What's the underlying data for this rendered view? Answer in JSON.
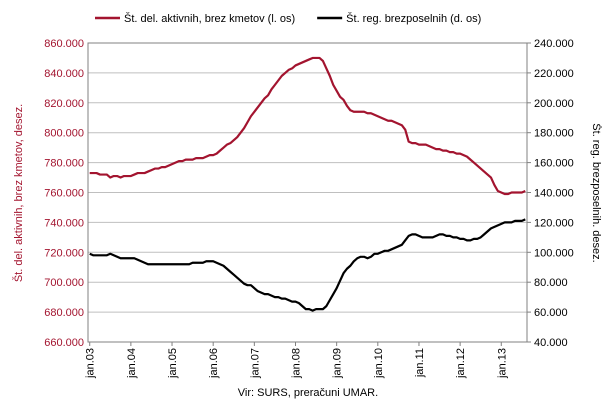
{
  "chart_data": {
    "type": "line",
    "source": "Vir: SURS, preračuni UMAR.",
    "ylabel": "Št. del. aktivnih, brez kmetov, desez.",
    "y2label": "Št. reg. brezposelnih. desez.",
    "categories": [
      "jan.03",
      null,
      null,
      null,
      null,
      null,
      null,
      null,
      null,
      null,
      null,
      null,
      "jan.04",
      null,
      null,
      null,
      null,
      null,
      null,
      null,
      null,
      null,
      null,
      null,
      "jan.05",
      null,
      null,
      null,
      null,
      null,
      null,
      null,
      null,
      null,
      null,
      null,
      "jan.06",
      null,
      null,
      null,
      null,
      null,
      null,
      null,
      null,
      null,
      null,
      null,
      "jan.07",
      null,
      null,
      null,
      null,
      null,
      null,
      null,
      null,
      null,
      null,
      null,
      "jan.08",
      null,
      null,
      null,
      null,
      null,
      null,
      null,
      null,
      null,
      null,
      null,
      "jan.09",
      null,
      null,
      null,
      null,
      null,
      null,
      null,
      null,
      null,
      null,
      null,
      "jan.10",
      null,
      null,
      null,
      null,
      null,
      null,
      null,
      null,
      null,
      null,
      null,
      "jan.11",
      null,
      null,
      null,
      null,
      null,
      null,
      null,
      null,
      null,
      null,
      null,
      "jan.12",
      null,
      null,
      null,
      null,
      null,
      null,
      null,
      null,
      null,
      null,
      null,
      "jan.13",
      null,
      null,
      null,
      null,
      null,
      null,
      null
    ],
    "series": [
      {
        "name": "Št. del. aktivnih, brez kmetov (l. os)",
        "color": "#a3142f",
        "axis": "y",
        "values": [
          773000,
          773000,
          773000,
          772000,
          772000,
          772000,
          770000,
          771000,
          771000,
          770000,
          771000,
          771000,
          771000,
          772000,
          773000,
          773000,
          773000,
          774000,
          775000,
          776000,
          776000,
          777000,
          777000,
          778000,
          779000,
          780000,
          781000,
          781000,
          782000,
          782000,
          782000,
          783000,
          783000,
          783000,
          784000,
          785000,
          785000,
          786000,
          788000,
          790000,
          792000,
          793000,
          795000,
          797000,
          800000,
          803000,
          807000,
          811000,
          814000,
          817000,
          820000,
          823000,
          825000,
          829000,
          832000,
          835000,
          838000,
          840000,
          842000,
          843000,
          845000,
          846000,
          847000,
          848000,
          849000,
          850000,
          850000,
          850000,
          848000,
          843000,
          838000,
          832000,
          828000,
          824000,
          822000,
          818000,
          815000,
          814000,
          814000,
          814000,
          814000,
          813000,
          813000,
          812000,
          811000,
          810000,
          809000,
          808000,
          808000,
          807000,
          806000,
          805000,
          802000,
          794000,
          793000,
          793000,
          792000,
          792000,
          792000,
          791000,
          790000,
          789000,
          789000,
          788000,
          788000,
          787000,
          787000,
          786000,
          786000,
          785000,
          784000,
          782000,
          780000,
          778000,
          776000,
          774000,
          772000,
          770000,
          765000,
          761000,
          760000,
          759000,
          759000,
          760000,
          760000,
          760000,
          760000,
          761000
        ]
      },
      {
        "name": "Št. reg. brezposelnih (d. os)",
        "color": "#000000",
        "axis": "y2",
        "values": [
          99000,
          98000,
          98000,
          98000,
          98000,
          98000,
          99000,
          98000,
          97000,
          96000,
          96000,
          96000,
          96000,
          96000,
          95000,
          94000,
          93000,
          92000,
          92000,
          92000,
          92000,
          92000,
          92000,
          92000,
          92000,
          92000,
          92000,
          92000,
          92000,
          92000,
          93000,
          93000,
          93000,
          93000,
          94000,
          94000,
          94000,
          93000,
          92000,
          91000,
          89000,
          87000,
          85000,
          83000,
          81000,
          79000,
          78000,
          78000,
          76000,
          74000,
          73000,
          72000,
          72000,
          71000,
          70000,
          70000,
          69000,
          69000,
          68000,
          67000,
          67000,
          66000,
          64000,
          62000,
          62000,
          61000,
          62000,
          62000,
          62000,
          64000,
          68000,
          72000,
          76000,
          81000,
          86000,
          89000,
          91000,
          94000,
          96000,
          97000,
          97000,
          96000,
          97000,
          99000,
          99000,
          100000,
          101000,
          101000,
          102000,
          103000,
          104000,
          105000,
          108000,
          111000,
          112000,
          112000,
          111000,
          110000,
          110000,
          110000,
          110000,
          111000,
          112000,
          112000,
          111000,
          111000,
          110000,
          110000,
          109000,
          109000,
          108000,
          108000,
          109000,
          109000,
          110000,
          112000,
          114000,
          116000,
          117000,
          118000,
          119000,
          120000,
          120000,
          120000,
          121000,
          121000,
          121000,
          122000
        ]
      }
    ],
    "ylim": [
      660000,
      860000
    ],
    "yticks": [
      {
        "value": 660000,
        "label": "660.000"
      },
      {
        "value": 680000,
        "label": "680.000"
      },
      {
        "value": 700000,
        "label": "700.000"
      },
      {
        "value": 720000,
        "label": "720.000"
      },
      {
        "value": 740000,
        "label": "740.000"
      },
      {
        "value": 760000,
        "label": "760.000"
      },
      {
        "value": 780000,
        "label": "780.000"
      },
      {
        "value": 800000,
        "label": "800.000"
      },
      {
        "value": 820000,
        "label": "820.000"
      },
      {
        "value": 840000,
        "label": "840.000"
      },
      {
        "value": 860000,
        "label": "860.000"
      }
    ],
    "y2lim": [
      40000,
      240000
    ],
    "y2ticks": [
      {
        "value": 40000,
        "label": "40.000"
      },
      {
        "value": 60000,
        "label": "60.000"
      },
      {
        "value": 80000,
        "label": "80.000"
      },
      {
        "value": 100000,
        "label": "100.000"
      },
      {
        "value": 120000,
        "label": "120.000"
      },
      {
        "value": 140000,
        "label": "140.000"
      },
      {
        "value": 160000,
        "label": "160.000"
      },
      {
        "value": 180000,
        "label": "180.000"
      },
      {
        "value": 200000,
        "label": "200.000"
      },
      {
        "value": 220000,
        "label": "220.000"
      },
      {
        "value": 240000,
        "label": "240.000"
      }
    ],
    "grid": true
  }
}
